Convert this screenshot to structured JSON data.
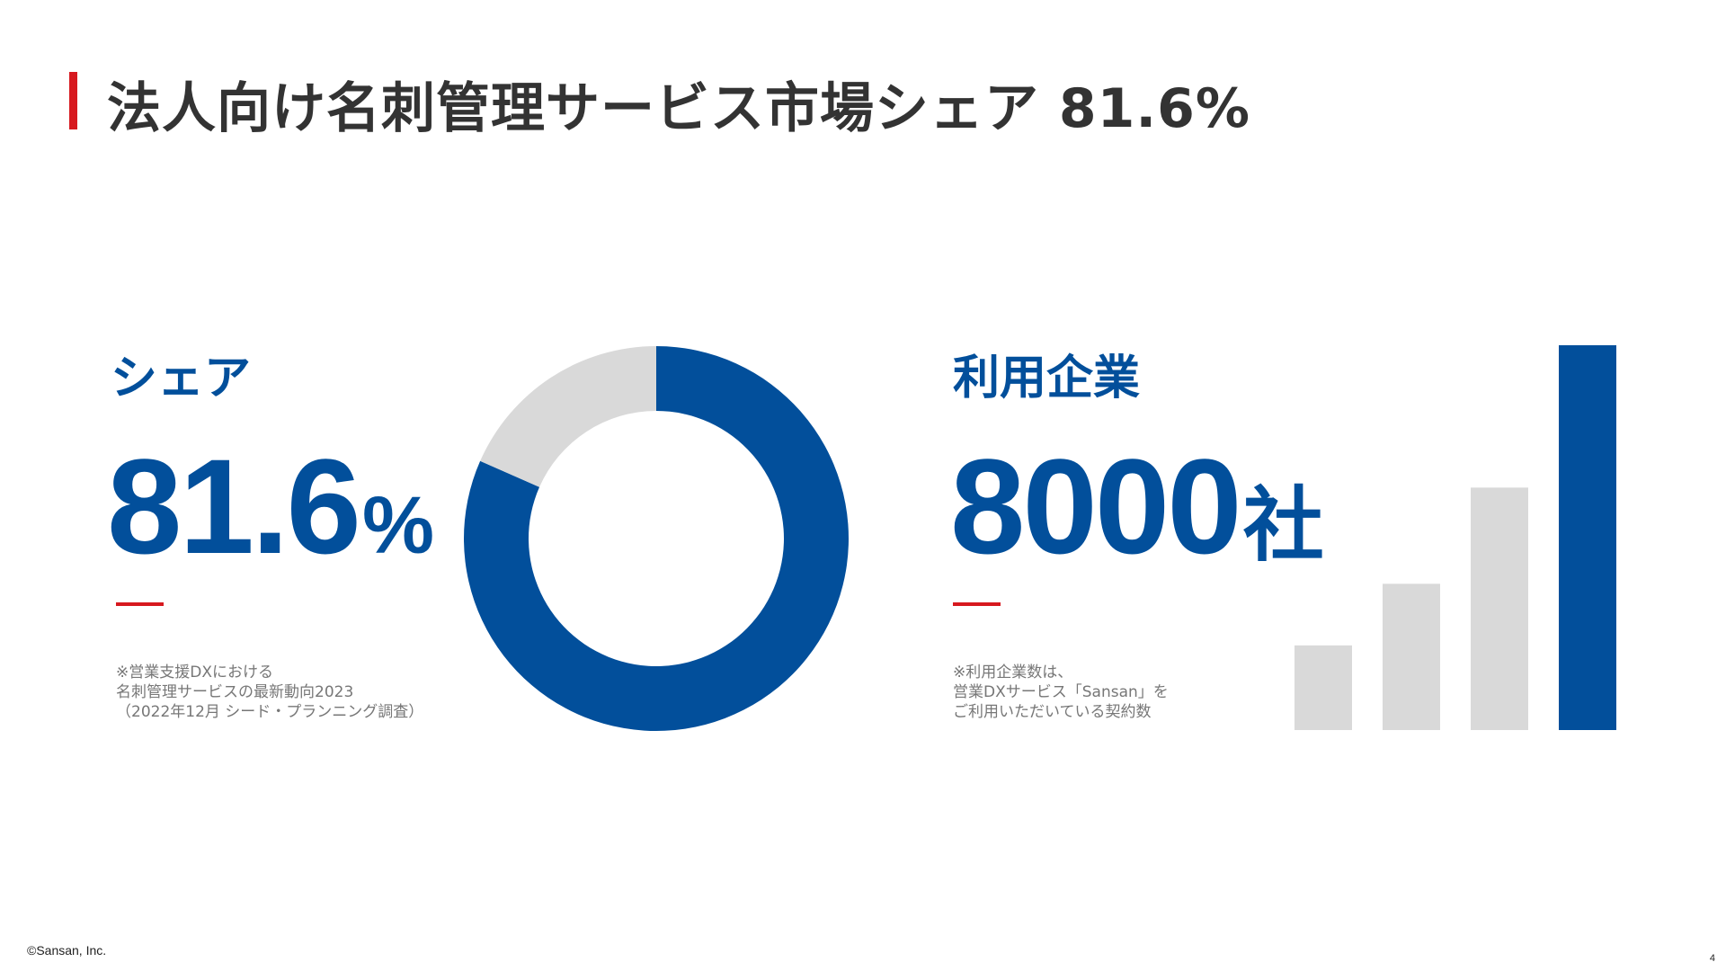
{
  "colors": {
    "accent_red": "#d7191f",
    "primary_blue": "#024f9b",
    "gray_light": "#d9d9d9",
    "text_dark": "#333333",
    "text_note": "#777777"
  },
  "title": "法人向け名刺管理サービス市場シェア 81.6%",
  "share": {
    "label": "シェア",
    "value": "81.6",
    "unit": "%",
    "note": [
      "※営業支援DXにおける",
      "名刺管理サービスの最新動向2023",
      "（2022年12月 シード・プランニング調査）"
    ]
  },
  "users": {
    "label": "利用企業",
    "value": "8000",
    "unit": "社",
    "note": [
      "※利用企業数は、",
      "営業DXサービス「Sansan」を",
      "ご利用いただいている契約数"
    ]
  },
  "chart_data": [
    {
      "type": "pie",
      "style": "donut",
      "values": [
        81.6,
        18.4
      ],
      "colors": [
        "#024f9b",
        "#d9d9d9"
      ]
    },
    {
      "type": "bar",
      "values": [
        22,
        38,
        63,
        100
      ],
      "colors": [
        "#d9d9d9",
        "#d9d9d9",
        "#d9d9d9",
        "#024f9b"
      ],
      "ylim": [
        0,
        100
      ]
    }
  ],
  "footer": {
    "copyright": "©Sansan, Inc.",
    "page": "4"
  }
}
